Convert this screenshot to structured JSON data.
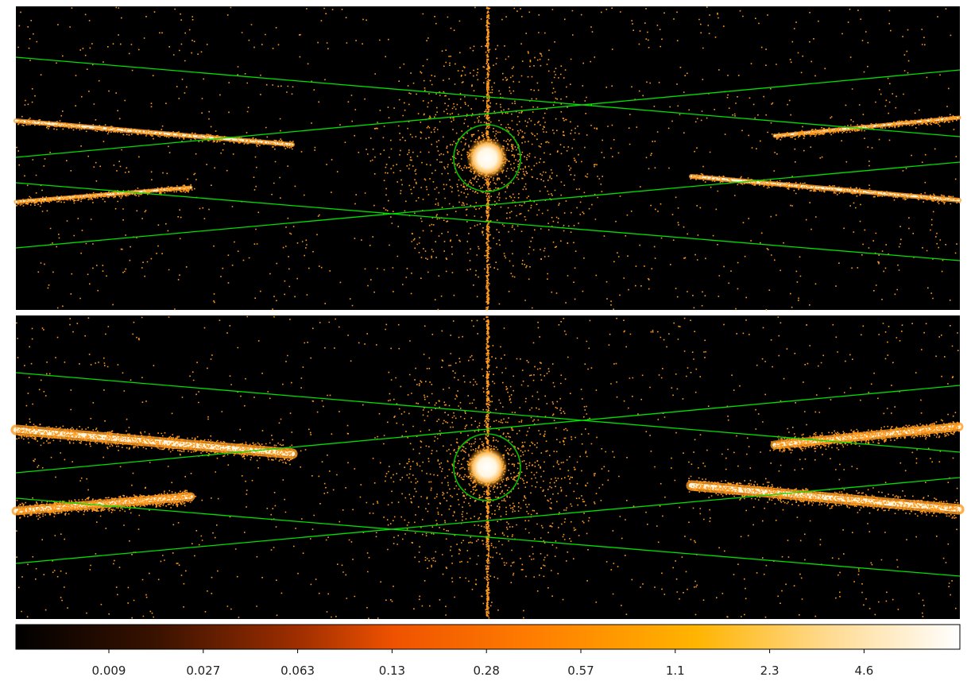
{
  "colorbar": {
    "tick_labels": [
      "0.009",
      "0.027",
      "0.063",
      "0.13",
      "0.28",
      "0.57",
      "1.1",
      "2.3",
      "4.6"
    ]
  }
}
